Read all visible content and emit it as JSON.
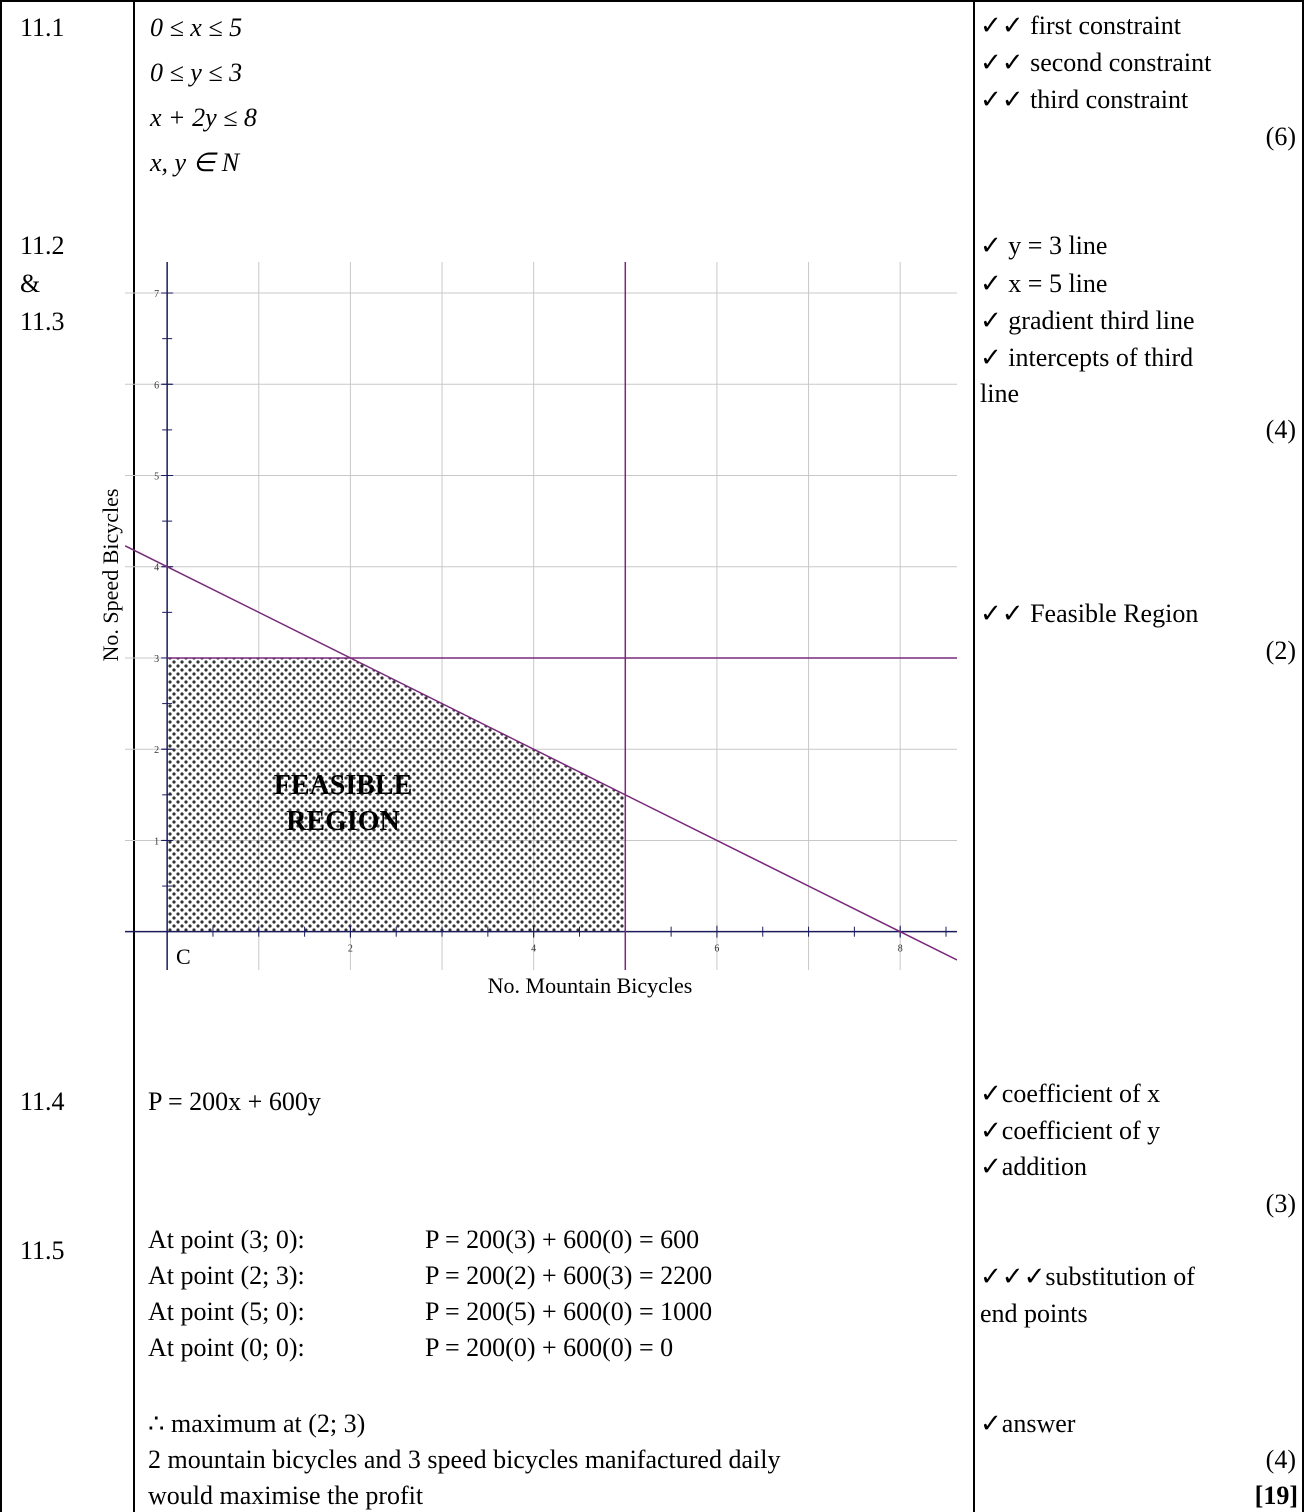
{
  "q11_1": {
    "number": "11.1",
    "lines": [
      "0 ≤ x ≤ 5",
      "0 ≤ y ≤ 3",
      "x + 2y ≤ 8",
      "x, y ∈ N"
    ],
    "marks": [
      "✓✓ first constraint",
      "✓✓ second constraint",
      "✓✓ third constraint"
    ],
    "total": "(6)"
  },
  "q11_2": {
    "number": [
      "11.2",
      "&",
      "11.3"
    ],
    "marks": [
      "✓ y = 3 line",
      "✓ x = 5 line",
      "✓ gradient third line",
      "✓ intercepts of third",
      "line"
    ],
    "total": "(4)",
    "region_mark": "✓✓ Feasible Region",
    "region_total": "(2)"
  },
  "graph": {
    "type": "line",
    "xlabel": "No. Mountain Bicycles",
    "ylabel": "No. Speed Bicycles",
    "origin_label": "C",
    "region_label": [
      "FEASIBLE",
      "REGION"
    ],
    "xlim": [
      -0.46,
      8.62
    ],
    "ylim": [
      -0.42,
      7.34
    ],
    "xticks": [
      2,
      4,
      6,
      8
    ],
    "yticks": [
      1,
      2,
      3,
      4,
      5,
      6,
      7
    ],
    "grid": true,
    "color": "#7a2a7a",
    "horizontal_line": 3,
    "vertical_line": 5,
    "sloped_line": {
      "slope": -0.5,
      "intercept": 4
    },
    "region": {
      "x": [
        0,
        0,
        2,
        5,
        5
      ],
      "y": [
        0,
        3,
        3,
        1.5,
        0
      ]
    }
  },
  "q11_4": {
    "number": "11.4",
    "line": "P = 200x + 600y",
    "marks": [
      "✓coefficient of x",
      "✓coefficient of y",
      "✓addition"
    ],
    "total": "(3)"
  },
  "q11_5": {
    "number": "11.5",
    "points": [
      [
        "At point (3; 0):",
        "P = 200(3) + 600(0) = 600"
      ],
      [
        "At point (2; 3):",
        "P = 200(2) + 600(3) = 2200"
      ],
      [
        "At point (5; 0):",
        "P = 200(5) + 600(0) = 1000"
      ],
      [
        "At point (0; 0):",
        "P = 200(0) + 600(0) = 0"
      ]
    ],
    "conclusion": [
      "∴ maximum at (2; 3)",
      "2 mountain bicycles and 3 speed bicycles manifactured daily",
      "would maximise the profit"
    ],
    "marks": [
      "✓✓✓substitution of",
      "end points"
    ],
    "answer_mark": "✓answer",
    "total": "(4)",
    "grand_total": "[19]"
  }
}
